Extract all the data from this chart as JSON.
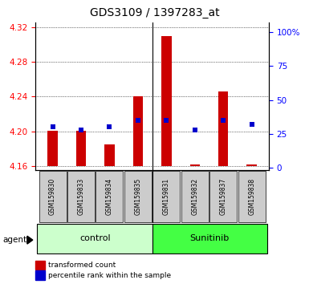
{
  "title": "GDS3109 / 1397283_at",
  "samples": [
    "GSM159830",
    "GSM159833",
    "GSM159834",
    "GSM159835",
    "GSM159831",
    "GSM159832",
    "GSM159837",
    "GSM159838"
  ],
  "groups": [
    "control",
    "control",
    "control",
    "control",
    "Sunitinib",
    "Sunitinib",
    "Sunitinib",
    "Sunitinib"
  ],
  "bar_values": [
    4.201,
    4.201,
    4.185,
    4.24,
    4.31,
    4.162,
    4.246,
    4.162
  ],
  "percentile_values": [
    30,
    28,
    30,
    35,
    35,
    28,
    35,
    32
  ],
  "baseline": 4.16,
  "ylim_left": [
    4.155,
    4.325
  ],
  "ylim_right": [
    -2,
    107
  ],
  "yticks_left": [
    4.16,
    4.2,
    4.24,
    4.28,
    4.32
  ],
  "yticks_right": [
    0,
    25,
    50,
    75,
    100
  ],
  "bar_color": "#cc0000",
  "percentile_color": "#0000cc",
  "bar_width": 0.35,
  "control_bg_light": "#ccffcc",
  "control_bg_dark": "#44ff44",
  "tick_label_bg": "#cccccc",
  "group_label_control": "control",
  "group_label_sunitinib": "Sunitinib",
  "legend_bar_label": "transformed count",
  "legend_pct_label": "percentile rank within the sample",
  "xlabel_agent": "agent",
  "title_fontsize": 10,
  "axis_fontsize": 7.5,
  "label_fontsize": 8
}
